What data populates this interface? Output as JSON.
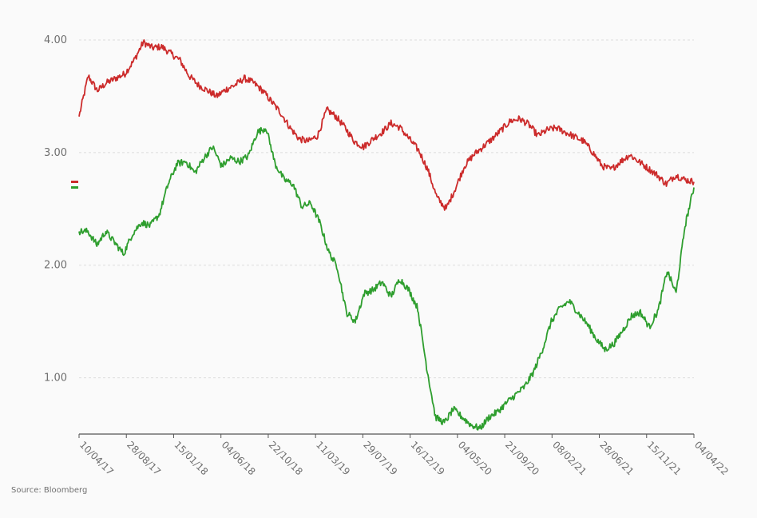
{
  "source": "Source: Bloomberg",
  "chart_data": {
    "type": "line",
    "ylim": [
      0.5,
      4.0
    ],
    "y_ticks": [
      1.0,
      2.0,
      3.0,
      4.0
    ],
    "y_tick_labels": [
      "1.00",
      "2.00",
      "3.00",
      "4.00"
    ],
    "grid": true,
    "x_tick_labels": [
      "10/04/17",
      "28/08/17",
      "15/01/18",
      "04/06/18",
      "22/10/18",
      "11/03/19",
      "29/07/19",
      "16/12/19",
      "04/05/20",
      "21/09/20",
      "08/02/21",
      "28/06/21",
      "15/11/21",
      "04/04/22"
    ],
    "series": [
      {
        "color": "#cc2b2b",
        "last_value": 2.74,
        "values": [
          3.32,
          3.68,
          3.55,
          3.62,
          3.66,
          3.7,
          3.82,
          3.98,
          3.93,
          3.94,
          3.88,
          3.82,
          3.68,
          3.6,
          3.55,
          3.5,
          3.56,
          3.6,
          3.66,
          3.62,
          3.55,
          3.45,
          3.35,
          3.22,
          3.12,
          3.1,
          3.15,
          3.38,
          3.32,
          3.22,
          3.1,
          3.05,
          3.12,
          3.18,
          3.26,
          3.22,
          3.12,
          3.02,
          2.85,
          2.6,
          2.5,
          2.68,
          2.88,
          2.98,
          3.05,
          3.12,
          3.2,
          3.28,
          3.3,
          3.25,
          3.15,
          3.2,
          3.22,
          3.18,
          3.14,
          3.1,
          3.0,
          2.88,
          2.85,
          2.92,
          2.98,
          2.92,
          2.86,
          2.8,
          2.72,
          2.8,
          2.76,
          2.74
        ]
      },
      {
        "color": "#2e9e2e",
        "last_value": 2.69,
        "values": [
          2.3,
          2.3,
          2.18,
          2.3,
          2.2,
          2.1,
          2.28,
          2.38,
          2.35,
          2.45,
          2.72,
          2.9,
          2.92,
          2.82,
          2.95,
          3.05,
          2.88,
          2.95,
          2.92,
          2.97,
          3.18,
          3.22,
          2.9,
          2.76,
          2.72,
          2.52,
          2.55,
          2.38,
          2.12,
          1.98,
          1.58,
          1.5,
          1.75,
          1.78,
          1.85,
          1.72,
          1.88,
          1.78,
          1.62,
          1.1,
          0.65,
          0.6,
          0.72,
          0.65,
          0.58,
          0.55,
          0.65,
          0.7,
          0.78,
          0.85,
          0.92,
          1.05,
          1.25,
          1.5,
          1.62,
          1.68,
          1.58,
          1.48,
          1.35,
          1.25,
          1.3,
          1.42,
          1.55,
          1.58,
          1.45,
          1.6,
          1.95,
          1.75,
          2.35,
          2.69
        ]
      }
    ]
  }
}
